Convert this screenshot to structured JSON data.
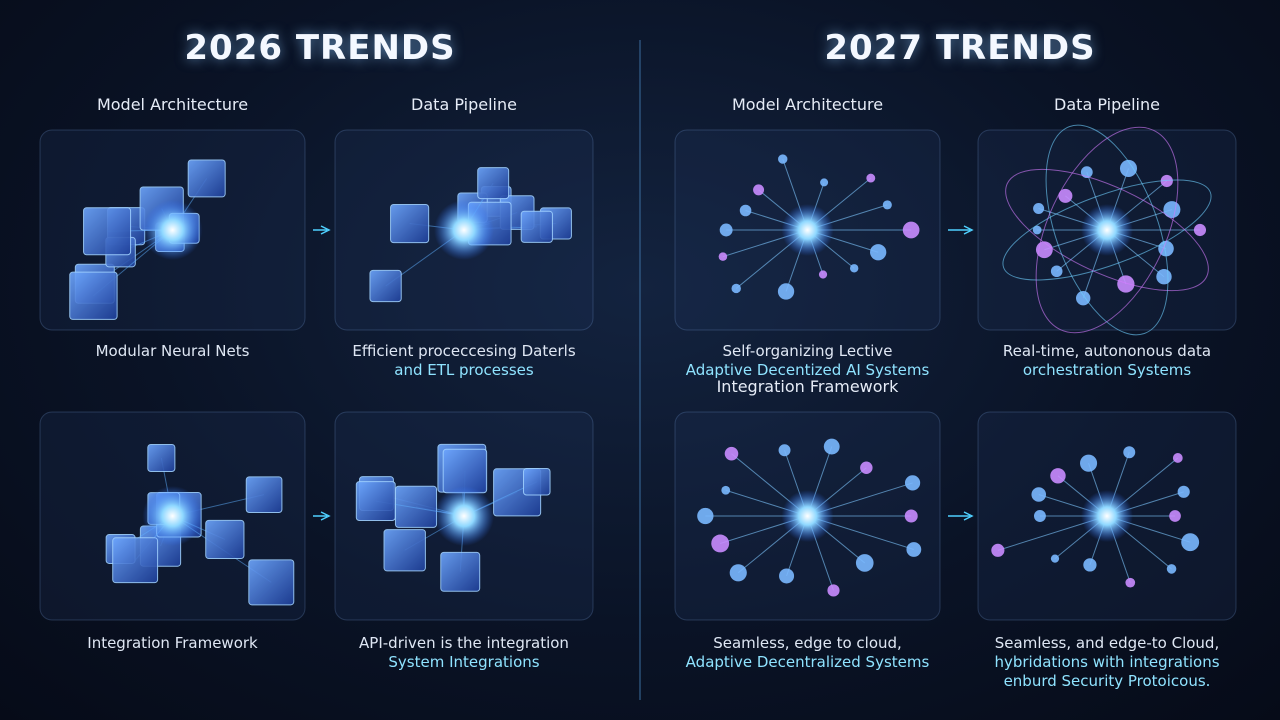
{
  "left": {
    "title": "2026 TRENDS",
    "panels": [
      {
        "header": "Model Architecture",
        "caption": [
          "Modular Neural Nets"
        ]
      },
      {
        "header": "Data Pipeline",
        "caption": [
          "Efficient proceccesing Daterls",
          "and ETL processes"
        ]
      },
      {
        "caption": [
          "Integration Framework"
        ]
      },
      {
        "caption": [
          "API-driven is the integration",
          "System Integrations"
        ]
      }
    ]
  },
  "right": {
    "title": "2027 TRENDS",
    "panels": [
      {
        "header": "Model Architecture",
        "caption": [
          "Self-organizing Lective",
          "Adaptive Decentized AI Systems"
        ]
      },
      {
        "header": "Data Pipeline",
        "caption": [
          "Real-time, autononous data",
          "orchestration Systems"
        ]
      },
      {
        "header": "Integration Framework",
        "caption": [
          "Seamless, edge to cloud,",
          "Adaptive Decentralized Systems"
        ]
      },
      {
        "caption": [
          "Seamless, and edge-to Cloud,",
          "hybridations with integrations",
          "enburd Security Protoicous."
        ]
      }
    ]
  }
}
